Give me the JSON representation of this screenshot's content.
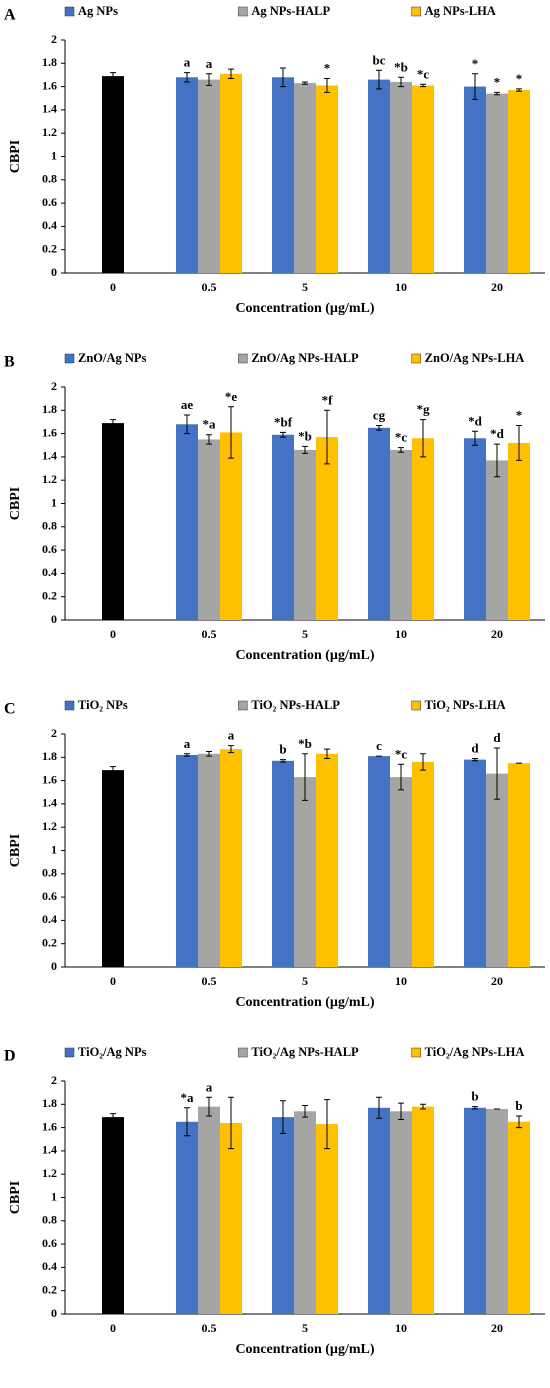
{
  "chart_data": [
    {
      "type": "bar",
      "title": "A",
      "ylabel": "CBPI",
      "xlabel": "Concentration (µg/mL)",
      "categories": [
        "0",
        "0.5",
        "5",
        "10",
        "20"
      ],
      "ylim": [
        0,
        2
      ],
      "yticks": [
        0,
        0.2,
        0.4,
        0.6,
        0.8,
        1,
        1.2,
        1.4,
        1.6,
        1.8,
        2
      ],
      "grid": false,
      "series": [
        {
          "color": "#000000",
          "values": [
            1.69,
            null,
            null,
            null,
            null
          ],
          "errors": [
            0.03,
            null,
            null,
            null,
            null
          ]
        },
        {
          "name": "Ag NPs",
          "color": "#4472c4",
          "values": [
            null,
            1.68,
            1.68,
            1.66,
            1.6
          ],
          "errors": [
            null,
            0.04,
            0.08,
            0.08,
            0.11
          ],
          "annotations": [
            null,
            "a",
            null,
            "bc",
            "*"
          ]
        },
        {
          "name": "Ag NPs-HALP",
          "color": "#a5a5a5",
          "values": [
            null,
            1.66,
            1.63,
            1.64,
            1.54
          ],
          "errors": [
            null,
            0.05,
            0.01,
            0.04,
            0.01
          ],
          "annotations": [
            null,
            "a",
            null,
            "*b",
            "*"
          ]
        },
        {
          "name": "Ag NPs-LHA",
          "color": "#ffc000",
          "values": [
            null,
            1.71,
            1.61,
            1.61,
            1.57
          ],
          "errors": [
            null,
            0.04,
            0.06,
            0.01,
            0.01
          ],
          "annotations": [
            null,
            null,
            "*",
            "*c",
            "*"
          ]
        }
      ]
    },
    {
      "type": "bar",
      "title": "B",
      "ylabel": "CBPI",
      "xlabel": "Concentration (µg/mL)",
      "categories": [
        "0",
        "0.5",
        "5",
        "10",
        "20"
      ],
      "ylim": [
        0,
        2
      ],
      "yticks": [
        0,
        0.2,
        0.4,
        0.6,
        0.8,
        1,
        1.2,
        1.4,
        1.6,
        1.8,
        2
      ],
      "grid": false,
      "series": [
        {
          "color": "#000000",
          "values": [
            1.69,
            null,
            null,
            null,
            null
          ],
          "errors": [
            0.03,
            null,
            null,
            null,
            null
          ]
        },
        {
          "name": "ZnO/Ag NPs",
          "color": "#4472c4",
          "values": [
            null,
            1.68,
            1.59,
            1.65,
            1.56
          ],
          "errors": [
            null,
            0.08,
            0.02,
            0.02,
            0.06
          ],
          "annotations": [
            null,
            "ae",
            "*bf",
            "cg",
            "*d"
          ]
        },
        {
          "name": "ZnO/Ag NPs-HALP",
          "color": "#a5a5a5",
          "values": [
            null,
            1.55,
            1.46,
            1.46,
            1.37
          ],
          "errors": [
            null,
            0.04,
            0.03,
            0.02,
            0.14
          ],
          "annotations": [
            null,
            "*a",
            "*b",
            "*c",
            "*d"
          ]
        },
        {
          "name": "ZnO/Ag NPs-LHA",
          "color": "#ffc000",
          "values": [
            null,
            1.61,
            1.57,
            1.56,
            1.52
          ],
          "errors": [
            null,
            0.22,
            0.23,
            0.16,
            0.15
          ],
          "annotations": [
            null,
            "*e",
            "*f",
            "*g",
            "*"
          ]
        }
      ]
    },
    {
      "type": "bar",
      "title": "C",
      "ylabel": "CBPI",
      "xlabel": "Concentration (µg/mL)",
      "categories": [
        "0",
        "0.5",
        "5",
        "10",
        "20"
      ],
      "ylim": [
        0,
        2
      ],
      "yticks": [
        0,
        0.2,
        0.4,
        0.6,
        0.8,
        1,
        1.2,
        1.4,
        1.6,
        1.8,
        2
      ],
      "grid": false,
      "series": [
        {
          "color": "#000000",
          "values": [
            1.69,
            null,
            null,
            null,
            null
          ],
          "errors": [
            0.03,
            null,
            null,
            null,
            null
          ]
        },
        {
          "name": "TiO₂ NPs",
          "color": "#4472c4",
          "values": [
            null,
            1.82,
            1.77,
            1.81,
            1.78
          ],
          "errors": [
            null,
            0.01,
            0.01,
            0,
            0.01
          ],
          "annotations": [
            null,
            "a",
            "b",
            "c",
            "d"
          ]
        },
        {
          "name": "TiO₂ NPs-HALP",
          "color": "#a5a5a5",
          "values": [
            null,
            1.83,
            1.63,
            1.63,
            1.66
          ],
          "errors": [
            null,
            0.02,
            0.2,
            0.11,
            0.22
          ],
          "annotations": [
            null,
            null,
            "*b",
            "*c",
            "d"
          ]
        },
        {
          "name": "TiO₂ NPs-LHA",
          "color": "#ffc000",
          "values": [
            null,
            1.87,
            1.83,
            1.76,
            1.75
          ],
          "errors": [
            null,
            0.03,
            0.04,
            0.07,
            0
          ],
          "annotations": [
            null,
            "a",
            null,
            null,
            null
          ]
        }
      ]
    },
    {
      "type": "bar",
      "title": "D",
      "ylabel": "CBPI",
      "xlabel": "Concentration (µg/mL)",
      "categories": [
        "0",
        "0.5",
        "5",
        "10",
        "20"
      ],
      "ylim": [
        0,
        2
      ],
      "yticks": [
        0,
        0.2,
        0.4,
        0.6,
        0.8,
        1,
        1.2,
        1.4,
        1.6,
        1.8,
        2
      ],
      "grid": false,
      "series": [
        {
          "color": "#000000",
          "values": [
            1.69,
            null,
            null,
            null,
            null
          ],
          "errors": [
            0.03,
            null,
            null,
            null,
            null
          ]
        },
        {
          "name": "TiO₂/Ag NPs",
          "color": "#4472c4",
          "values": [
            null,
            1.65,
            1.69,
            1.77,
            1.77
          ],
          "errors": [
            null,
            0.12,
            0.14,
            0.09,
            0.01
          ],
          "annotations": [
            null,
            "*a",
            null,
            null,
            "b"
          ]
        },
        {
          "name": "TiO₂/Ag NPs-HALP",
          "color": "#a5a5a5",
          "values": [
            null,
            1.78,
            1.74,
            1.74,
            1.76
          ],
          "errors": [
            null,
            0.08,
            0.05,
            0.07,
            0
          ],
          "annotations": [
            null,
            "a",
            null,
            null,
            null
          ]
        },
        {
          "name": "TiO₂/Ag NPs-LHA",
          "color": "#ffc000",
          "values": [
            null,
            1.64,
            1.63,
            1.78,
            1.65
          ],
          "errors": [
            null,
            0.22,
            0.21,
            0.02,
            0.05
          ],
          "annotations": [
            null,
            null,
            null,
            null,
            "b"
          ]
        }
      ]
    }
  ]
}
